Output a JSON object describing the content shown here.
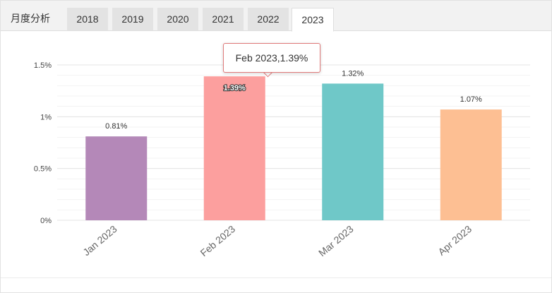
{
  "tabs": {
    "label": "月度分析",
    "items": [
      {
        "label": "2018"
      },
      {
        "label": "2019"
      },
      {
        "label": "2020"
      },
      {
        "label": "2021"
      },
      {
        "label": "2022"
      },
      {
        "label": "2023"
      }
    ],
    "active": "2023"
  },
  "chart_data": {
    "type": "bar",
    "title": "",
    "categories": [
      "Jan 2023",
      "Feb 2023",
      "Mar 2023",
      "Apr 2023"
    ],
    "values": [
      0.81,
      1.39,
      1.32,
      1.07
    ],
    "value_labels": [
      "0.81%",
      "1.39%",
      "1.32%",
      "1.07%"
    ],
    "colors": [
      "#b488b8",
      "#fc9f9e",
      "#6fc8c8",
      "#fdbf93"
    ],
    "yticks": [
      {
        "value": 0,
        "label": "0%"
      },
      {
        "value": 0.5,
        "label": "0.5%"
      },
      {
        "value": 1,
        "label": "1%"
      },
      {
        "value": 1.5,
        "label": "1.5%"
      }
    ],
    "ylim": [
      0,
      1.5
    ],
    "grid": true,
    "legend": "none"
  },
  "tooltip": {
    "text": "Feb 2023,1.39%",
    "category": "Feb 2023"
  }
}
